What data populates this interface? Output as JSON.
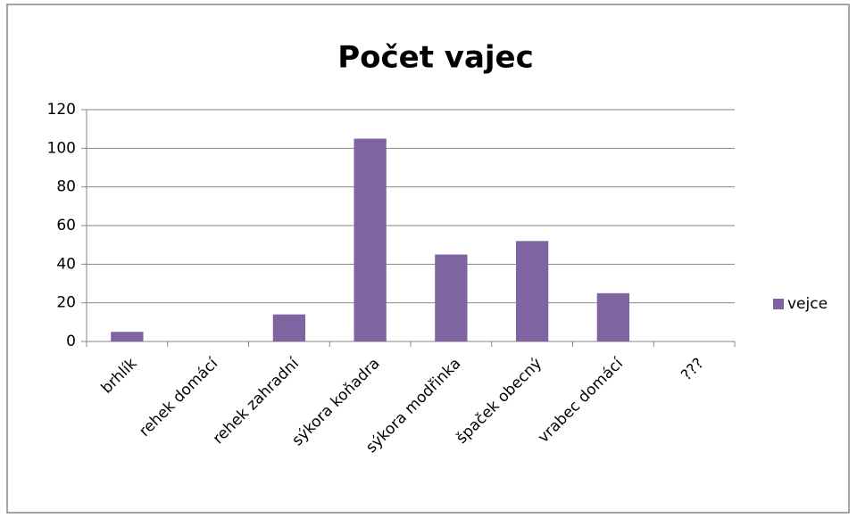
{
  "chart_data": {
    "type": "bar",
    "title": "Počet vajec",
    "categories": [
      "brhlík",
      "rehek domácí",
      "rehek zahradní",
      "sýkora koňadra",
      "sýkora modřinka",
      "špaček obecný",
      "vrabec domácí",
      "???"
    ],
    "series": [
      {
        "name": "vejce",
        "color": "#8064a2",
        "values": [
          5,
          0,
          14,
          105,
          45,
          52,
          25,
          0
        ]
      }
    ],
    "ylim": [
      0,
      120
    ],
    "yticks": [
      0,
      20,
      40,
      60,
      80,
      100,
      120
    ],
    "grid": true,
    "legend": "right"
  }
}
